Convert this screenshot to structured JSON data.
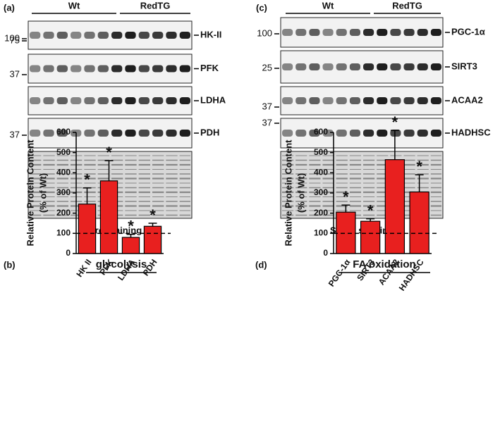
{
  "blots": [
    {
      "label": "(a)",
      "groups": [
        "Wt",
        "RedTG"
      ],
      "proteins": [
        "HK-II",
        "PFK",
        "LDHA",
        "PDH"
      ],
      "markers": [
        "100",
        "75",
        "37",
        "37"
      ],
      "footer": "Sypro staining"
    },
    {
      "label": "(c)",
      "groups": [
        "Wt",
        "RedTG"
      ],
      "proteins": [
        "PGC-1α",
        "SIRT3",
        "ACAA2",
        "HADHSC"
      ],
      "markers": [
        "100",
        "25",
        "37",
        "37"
      ],
      "footer": "Sypro staining"
    }
  ],
  "chart_data": [
    {
      "type": "bar",
      "label": "(b)",
      "title": "glycolysis",
      "y_label": [
        "Relative Protein Content",
        "(% of Wt)"
      ],
      "categories": [
        "HK II",
        "PFK",
        "LDHA",
        "PDH"
      ],
      "values": [
        245,
        360,
        80,
        135
      ],
      "errors": [
        80,
        100,
        15,
        15
      ],
      "annotations": [
        "*",
        "*",
        "*",
        "*"
      ],
      "reference_line": 100,
      "color": "#e8201f",
      "ylim": [
        0,
        600
      ],
      "yticks": [
        0,
        100,
        200,
        300,
        400,
        500,
        600
      ]
    },
    {
      "type": "bar",
      "label": "(d)",
      "title": "FA oxidation",
      "y_label": [
        "Relative Protein Content",
        "(% of Wt)"
      ],
      "categories": [
        "PGC-1α",
        "SIRT3",
        "ACAA2",
        "HADHSC"
      ],
      "values": [
        205,
        160,
        465,
        305
      ],
      "errors": [
        35,
        12,
        145,
        85
      ],
      "annotations": [
        "*",
        "*",
        "*",
        "*"
      ],
      "reference_line": 100,
      "color": "#e8201f",
      "ylim": [
        0,
        600
      ],
      "yticks": [
        0,
        100,
        200,
        300,
        400,
        500,
        600
      ]
    }
  ]
}
